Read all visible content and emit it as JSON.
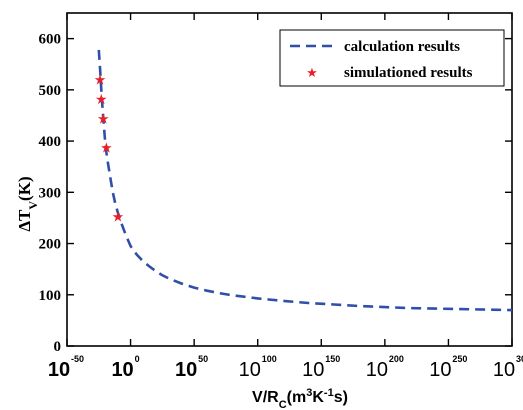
{
  "chart_data": {
    "type": "line",
    "xlabel_parts": {
      "base": "V/R",
      "sub": "C",
      "paren_open": "(m",
      "sup1": "3",
      "mid": "K",
      "sup2": "-1",
      "end": "s)"
    },
    "ylabel_parts": {
      "base": "ΔT",
      "sub": "V",
      "end": "(K)"
    },
    "xlim": [
      -50,
      300
    ],
    "ylim": [
      0,
      650
    ],
    "x_ticks": [
      {
        "base": "10",
        "exp": "-50",
        "value": -50
      },
      {
        "base": "10",
        "exp": "0",
        "value": 0
      },
      {
        "base": "10",
        "exp": "50",
        "value": 50
      },
      {
        "base": "10",
        "exp": "100",
        "value": 100
      },
      {
        "base": "10",
        "exp": "150",
        "value": 150
      },
      {
        "base": "10",
        "exp": "200",
        "value": 200
      },
      {
        "base": "10",
        "exp": "250",
        "value": 250
      },
      {
        "base": "10",
        "exp": "300",
        "value": 300
      }
    ],
    "y_ticks": [
      "0",
      "100",
      "200",
      "300",
      "400",
      "500",
      "600"
    ],
    "y_tick_values": [
      0,
      100,
      200,
      300,
      400,
      500,
      600
    ],
    "legend": {
      "position": "top-right"
    },
    "series": [
      {
        "name": "calculation results",
        "style": "dashed-line",
        "color": "#2f4fa8",
        "x": [
          -25,
          -24,
          -23,
          -22,
          -21,
          -20,
          -19,
          -18,
          -16,
          -14,
          -12,
          -10,
          -7,
          -4,
          0,
          5,
          10,
          15,
          20,
          25,
          30,
          40,
          50,
          60,
          70,
          80,
          90,
          100,
          120,
          140,
          160,
          180,
          200,
          220,
          240,
          260,
          280,
          300
        ],
        "y": [
          578,
          540,
          500,
          462,
          430,
          400,
          378,
          360,
          330,
          300,
          278,
          260,
          238,
          218,
          195,
          178,
          165,
          155,
          146,
          138,
          132,
          122,
          114,
          108,
          103,
          99,
          96,
          93,
          88,
          84,
          81,
          78,
          76,
          74,
          73,
          72,
          71,
          70
        ]
      },
      {
        "name": "simulationed results",
        "style": "star-markers",
        "color": "#e8202a",
        "x": [
          -24,
          -23,
          -21.5,
          -19,
          -10
        ],
        "y": [
          520,
          482,
          444,
          387,
          253
        ]
      }
    ]
  }
}
